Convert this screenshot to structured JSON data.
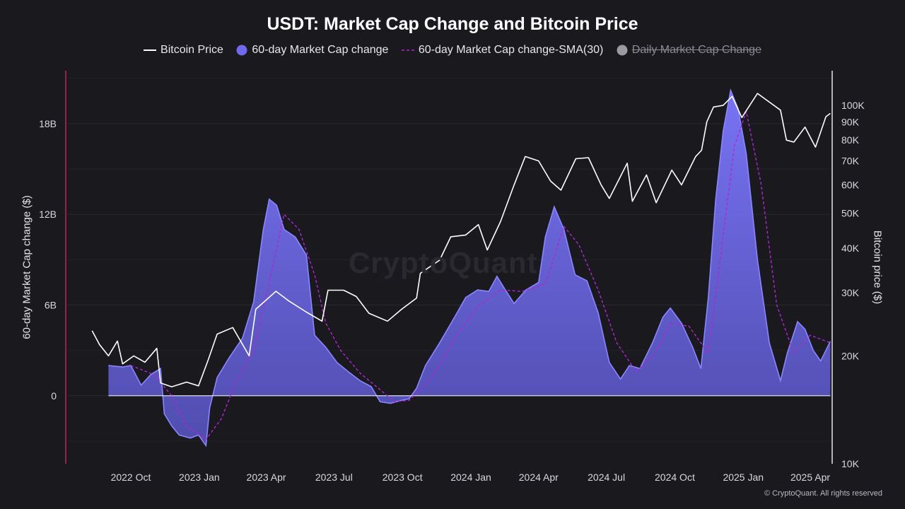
{
  "chart_data": {
    "type": "area",
    "title": "USDT: Market Cap Change and Bitcoin Price",
    "legend": [
      {
        "name": "Bitcoin Price",
        "style": "line",
        "color": "#ffffff",
        "enabled": true
      },
      {
        "name": "60-day Market Cap change",
        "style": "area",
        "color": "#6f6af0",
        "enabled": true
      },
      {
        "name": "60-day Market Cap change-SMA(30)",
        "style": "dashed",
        "color": "#b026d6",
        "enabled": true
      },
      {
        "name": "Daily Market Cap Change",
        "style": "dot",
        "color": "#9a9aa2",
        "enabled": false
      }
    ],
    "legend_position": "top-center",
    "ylabel_left": "60-day Market Cap change ($)",
    "ylabel_right": "Bitcoin price ($)",
    "yleft_ticks": [
      {
        "value": 0,
        "label": "0"
      },
      {
        "value": 6,
        "label": "6B"
      },
      {
        "value": 12,
        "label": "12B"
      },
      {
        "value": 18,
        "label": "18B"
      }
    ],
    "yleft_range": [
      -4.5,
      21.5
    ],
    "yright_ticks": [
      {
        "value": 10000,
        "label": "10K"
      },
      {
        "value": 20000,
        "label": "20K"
      },
      {
        "value": 30000,
        "label": "30K"
      },
      {
        "value": 40000,
        "label": "40K"
      },
      {
        "value": 50000,
        "label": "50K"
      },
      {
        "value": 60000,
        "label": "60K"
      },
      {
        "value": 70000,
        "label": "70K"
      },
      {
        "value": 80000,
        "label": "80K"
      },
      {
        "value": 90000,
        "label": "90K"
      },
      {
        "value": 100000,
        "label": "100K"
      }
    ],
    "yright_scale": "log",
    "yright_range": [
      10000,
      125000
    ],
    "x_range": [
      "2022-08",
      "2025-05"
    ],
    "x_ticks": [
      {
        "date": "2022-10",
        "label": "2022 Oct"
      },
      {
        "date": "2023-01",
        "label": "2023 Jan"
      },
      {
        "date": "2023-04",
        "label": "2023 Apr"
      },
      {
        "date": "2023-07",
        "label": "2023 Jul"
      },
      {
        "date": "2023-10",
        "label": "2023 Oct"
      },
      {
        "date": "2024-01",
        "label": "2024 Jan"
      },
      {
        "date": "2024-04",
        "label": "2024 Apr"
      },
      {
        "date": "2024-07",
        "label": "2024 Jul"
      },
      {
        "date": "2024-10",
        "label": "2024 Oct"
      },
      {
        "date": "2025-01",
        "label": "2025 Jan"
      },
      {
        "date": "2025-04",
        "label": "2025 Apr"
      }
    ],
    "grid": true,
    "series": [
      {
        "name": "Bitcoin Price",
        "axis": "right",
        "points": [
          [
            "2022-08-10",
            23500
          ],
          [
            "2022-08-20",
            21500
          ],
          [
            "2022-09-01",
            20000
          ],
          [
            "2022-09-13",
            22000
          ],
          [
            "2022-09-20",
            19000
          ],
          [
            "2022-10-05",
            20000
          ],
          [
            "2022-10-20",
            19200
          ],
          [
            "2022-11-05",
            21000
          ],
          [
            "2022-11-10",
            16800
          ],
          [
            "2022-11-25",
            16400
          ],
          [
            "2022-12-15",
            16900
          ],
          [
            "2022-12-31",
            16500
          ],
          [
            "2023-01-13",
            19500
          ],
          [
            "2023-01-25",
            23000
          ],
          [
            "2023-02-15",
            24000
          ],
          [
            "2023-03-09",
            20000
          ],
          [
            "2023-03-18",
            27000
          ],
          [
            "2023-04-14",
            30300
          ],
          [
            "2023-05-01",
            28500
          ],
          [
            "2023-05-25",
            26500
          ],
          [
            "2023-06-15",
            25000
          ],
          [
            "2023-06-23",
            30500
          ],
          [
            "2023-07-14",
            30500
          ],
          [
            "2023-07-31",
            29300
          ],
          [
            "2023-08-17",
            26300
          ],
          [
            "2023-09-11",
            25000
          ],
          [
            "2023-09-30",
            27000
          ],
          [
            "2023-10-20",
            29000
          ],
          [
            "2023-10-25",
            34000
          ],
          [
            "2023-11-20",
            37000
          ],
          [
            "2023-12-05",
            43000
          ],
          [
            "2023-12-25",
            43500
          ],
          [
            "2024-01-11",
            46500
          ],
          [
            "2024-01-23",
            39500
          ],
          [
            "2024-02-10",
            47500
          ],
          [
            "2024-02-28",
            60000
          ],
          [
            "2024-03-14",
            72000
          ],
          [
            "2024-04-01",
            70000
          ],
          [
            "2024-04-17",
            61500
          ],
          [
            "2024-05-01",
            58000
          ],
          [
            "2024-05-21",
            71000
          ],
          [
            "2024-06-07",
            71500
          ],
          [
            "2024-06-24",
            60000
          ],
          [
            "2024-07-05",
            55000
          ],
          [
            "2024-07-29",
            69000
          ],
          [
            "2024-08-05",
            54000
          ],
          [
            "2024-08-24",
            64000
          ],
          [
            "2024-09-06",
            53500
          ],
          [
            "2024-09-27",
            66000
          ],
          [
            "2024-10-10",
            60000
          ],
          [
            "2024-10-29",
            72000
          ],
          [
            "2024-11-06",
            75000
          ],
          [
            "2024-11-13",
            90000
          ],
          [
            "2024-11-22",
            99000
          ],
          [
            "2024-12-05",
            100000
          ],
          [
            "2024-12-17",
            106000
          ],
          [
            "2024-12-30",
            92500
          ],
          [
            "2025-01-20",
            108000
          ],
          [
            "2025-01-31",
            104000
          ],
          [
            "2025-02-20",
            97000
          ],
          [
            "2025-02-28",
            80000
          ],
          [
            "2025-03-10",
            79000
          ],
          [
            "2025-03-25",
            87000
          ],
          [
            "2025-04-08",
            76500
          ],
          [
            "2025-04-22",
            93000
          ],
          [
            "2025-04-28",
            95000
          ]
        ]
      },
      {
        "name": "60-day Market Cap change",
        "axis": "left",
        "unit": "B",
        "points": [
          [
            "2022-09-01",
            2.0
          ],
          [
            "2022-09-20",
            1.9
          ],
          [
            "2022-10-01",
            2.0
          ],
          [
            "2022-10-15",
            0.7
          ],
          [
            "2022-10-28",
            1.4
          ],
          [
            "2022-11-10",
            1.8
          ],
          [
            "2022-11-15",
            -1.2
          ],
          [
            "2022-11-25",
            -2.0
          ],
          [
            "2022-12-05",
            -2.6
          ],
          [
            "2022-12-20",
            -2.8
          ],
          [
            "2022-12-31",
            -2.6
          ],
          [
            "2023-01-10",
            -3.3
          ],
          [
            "2023-01-15",
            -0.8
          ],
          [
            "2023-01-25",
            1.2
          ],
          [
            "2023-02-10",
            2.5
          ],
          [
            "2023-02-28",
            3.8
          ],
          [
            "2023-03-15",
            6.2
          ],
          [
            "2023-03-28",
            11.0
          ],
          [
            "2023-04-05",
            13.0
          ],
          [
            "2023-04-15",
            12.6
          ],
          [
            "2023-04-25",
            11.0
          ],
          [
            "2023-05-10",
            10.5
          ],
          [
            "2023-05-25",
            9.3
          ],
          [
            "2023-06-05",
            4.0
          ],
          [
            "2023-06-20",
            3.2
          ],
          [
            "2023-07-05",
            2.2
          ],
          [
            "2023-07-20",
            1.6
          ],
          [
            "2023-08-05",
            1.0
          ],
          [
            "2023-08-20",
            0.6
          ],
          [
            "2023-09-01",
            -0.4
          ],
          [
            "2023-09-15",
            -0.5
          ],
          [
            "2023-09-30",
            -0.3
          ],
          [
            "2023-10-10",
            -0.2
          ],
          [
            "2023-10-20",
            0.5
          ],
          [
            "2023-11-01",
            2.0
          ],
          [
            "2023-11-20",
            3.5
          ],
          [
            "2023-12-10",
            5.2
          ],
          [
            "2023-12-25",
            6.5
          ],
          [
            "2024-01-10",
            7.0
          ],
          [
            "2024-01-25",
            6.9
          ],
          [
            "2024-02-05",
            7.9
          ],
          [
            "2024-02-15",
            7.1
          ],
          [
            "2024-02-28",
            6.1
          ],
          [
            "2024-03-15",
            7.0
          ],
          [
            "2024-04-01",
            7.5
          ],
          [
            "2024-04-10",
            10.5
          ],
          [
            "2024-04-22",
            12.5
          ],
          [
            "2024-05-05",
            11.0
          ],
          [
            "2024-05-20",
            8.0
          ],
          [
            "2024-06-05",
            7.6
          ],
          [
            "2024-06-20",
            5.5
          ],
          [
            "2024-07-05",
            2.2
          ],
          [
            "2024-07-20",
            1.1
          ],
          [
            "2024-08-01",
            2.0
          ],
          [
            "2024-08-15",
            1.8
          ],
          [
            "2024-09-01",
            3.5
          ],
          [
            "2024-09-15",
            5.2
          ],
          [
            "2024-09-25",
            5.8
          ],
          [
            "2024-10-10",
            4.8
          ],
          [
            "2024-10-25",
            3.2
          ],
          [
            "2024-11-05",
            1.8
          ],
          [
            "2024-11-15",
            6.5
          ],
          [
            "2024-11-25",
            13.0
          ],
          [
            "2024-12-05",
            17.5
          ],
          [
            "2024-12-15",
            20.2
          ],
          [
            "2024-12-25",
            19.0
          ],
          [
            "2025-01-05",
            16.0
          ],
          [
            "2025-01-20",
            9.0
          ],
          [
            "2025-02-05",
            3.5
          ],
          [
            "2025-02-20",
            1.0
          ],
          [
            "2025-03-01",
            2.8
          ],
          [
            "2025-03-15",
            4.9
          ],
          [
            "2025-03-25",
            4.4
          ],
          [
            "2025-04-05",
            3.0
          ],
          [
            "2025-04-15",
            2.3
          ],
          [
            "2025-04-28",
            3.6
          ]
        ]
      },
      {
        "name": "60-day Market Cap change-SMA(30)",
        "axis": "left",
        "unit": "B",
        "points": [
          [
            "2022-10-01",
            2.0
          ],
          [
            "2022-11-01",
            1.4
          ],
          [
            "2022-11-25",
            0.0
          ],
          [
            "2022-12-15",
            -2.0
          ],
          [
            "2023-01-10",
            -2.9
          ],
          [
            "2023-01-31",
            -1.5
          ],
          [
            "2023-02-20",
            1.0
          ],
          [
            "2023-03-15",
            3.0
          ],
          [
            "2023-04-05",
            7.5
          ],
          [
            "2023-04-25",
            12.0
          ],
          [
            "2023-05-15",
            11.0
          ],
          [
            "2023-06-05",
            8.0
          ],
          [
            "2023-06-20",
            4.8
          ],
          [
            "2023-07-10",
            3.0
          ],
          [
            "2023-08-05",
            1.5
          ],
          [
            "2023-09-01",
            0.4
          ],
          [
            "2023-09-20",
            -0.4
          ],
          [
            "2023-10-10",
            -0.3
          ],
          [
            "2023-11-10",
            1.2
          ],
          [
            "2023-12-10",
            3.8
          ],
          [
            "2024-01-10",
            5.9
          ],
          [
            "2024-02-10",
            7.0
          ],
          [
            "2024-03-10",
            6.9
          ],
          [
            "2024-04-10",
            7.4
          ],
          [
            "2024-05-05",
            11.2
          ],
          [
            "2024-05-25",
            10.0
          ],
          [
            "2024-06-20",
            7.0
          ],
          [
            "2024-07-15",
            3.5
          ],
          [
            "2024-08-10",
            1.6
          ],
          [
            "2024-09-05",
            2.8
          ],
          [
            "2024-09-25",
            4.8
          ],
          [
            "2024-10-20",
            4.6
          ],
          [
            "2024-11-15",
            2.8
          ],
          [
            "2024-12-01",
            9.0
          ],
          [
            "2024-12-20",
            16.5
          ],
          [
            "2025-01-05",
            18.8
          ],
          [
            "2025-01-25",
            14.0
          ],
          [
            "2025-02-15",
            6.0
          ],
          [
            "2025-03-10",
            2.8
          ],
          [
            "2025-04-01",
            4.0
          ],
          [
            "2025-04-28",
            3.5
          ]
        ]
      }
    ]
  },
  "copyright": "© CryptoQuant. All rights reserved",
  "watermark": "CryptoQuant"
}
